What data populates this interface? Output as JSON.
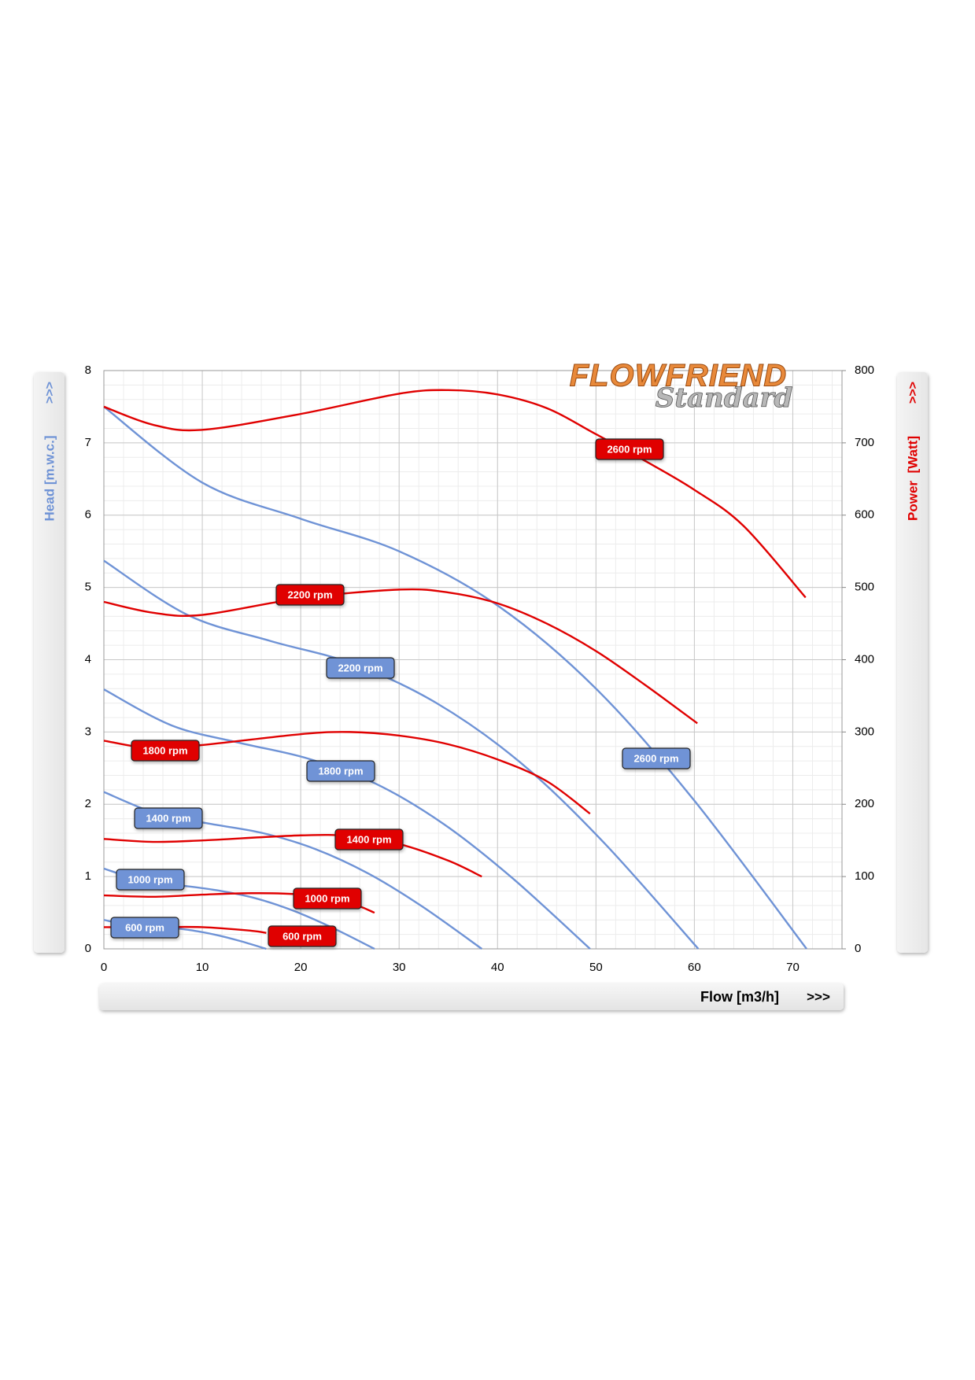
{
  "chart_data": {
    "type": "line",
    "logo": {
      "main": "FLOWFRIEND",
      "sub": "Standard"
    },
    "x_label": "Flow [m3/h]",
    "y_label": "Head [m.w.c.]",
    "y2_label": "Power  [Watt]",
    "x_arrow": ">>>",
    "y_arrow": ">>>",
    "y2_arrow": ">>>",
    "xlim": [
      0,
      75
    ],
    "xticks": [
      0,
      10,
      20,
      30,
      40,
      50,
      60,
      70
    ],
    "ylim": [
      0,
      8
    ],
    "yticks": [
      0,
      1,
      2,
      3,
      4,
      5,
      6,
      7,
      8
    ],
    "y2lim": [
      0,
      800
    ],
    "y2ticks": [
      0,
      100,
      200,
      300,
      400,
      500,
      600,
      700,
      800
    ],
    "grid": true,
    "minor_grid": true,
    "series": [
      {
        "name": "600 rpm",
        "color": "#6f93d6",
        "axis": "y",
        "x": [
          0,
          2.3,
          4.6,
          6.9,
          9.2,
          11.5,
          13.8,
          16.5
        ],
        "values": [
          0.4,
          0.34,
          0.32,
          0.29,
          0.25,
          0.19,
          0.11,
          0
        ]
      },
      {
        "name": "1000 rpm",
        "color": "#6f93d6",
        "axis": "y",
        "x": [
          0,
          3.8,
          7.7,
          11.5,
          15.4,
          19.2,
          23.1,
          27.5
        ],
        "values": [
          1.11,
          0.95,
          0.88,
          0.81,
          0.7,
          0.53,
          0.3,
          0
        ]
      },
      {
        "name": "1400 rpm",
        "color": "#6f93d6",
        "axis": "y",
        "x": [
          0,
          5.4,
          10.8,
          16.2,
          21.5,
          26.9,
          32.3,
          38.4
        ],
        "values": [
          2.17,
          1.87,
          1.73,
          1.6,
          1.38,
          1.04,
          0.59,
          0
        ]
      },
      {
        "name": "1800 rpm",
        "color": "#6f93d6",
        "axis": "y",
        "x": [
          0,
          6.9,
          13.8,
          20.8,
          27.7,
          34.6,
          41.5,
          49.4
        ],
        "values": [
          3.59,
          3.09,
          2.85,
          2.63,
          2.28,
          1.72,
          0.98,
          0
        ]
      },
      {
        "name": "2200 rpm",
        "color": "#6f93d6",
        "axis": "y",
        "x": [
          0,
          8.5,
          16.9,
          25.4,
          33.8,
          42.3,
          50.8,
          60.4
        ],
        "values": [
          5.37,
          4.62,
          4.26,
          3.94,
          3.4,
          2.58,
          1.47,
          0
        ]
      },
      {
        "name": "2600 rpm",
        "color": "#6f93d6",
        "axis": "y",
        "x": [
          0,
          10,
          20,
          30,
          40,
          50,
          60,
          71.4
        ],
        "values": [
          7.5,
          6.45,
          5.95,
          5.5,
          4.75,
          3.6,
          2.05,
          0
        ]
      },
      {
        "name": "600 rpm",
        "color": "#e00000",
        "axis": "y2",
        "x": [
          0,
          5,
          10,
          15,
          16.5
        ],
        "values": [
          30,
          30,
          30,
          25,
          22
        ]
      },
      {
        "name": "1000 rpm",
        "color": "#e00000",
        "axis": "y2",
        "x": [
          0,
          5,
          10,
          15,
          20,
          25,
          27.5
        ],
        "values": [
          74,
          72,
          75,
          77,
          75,
          63,
          50
        ]
      },
      {
        "name": "1400 rpm",
        "color": "#e00000",
        "axis": "y2",
        "x": [
          0,
          5,
          10,
          20,
          25,
          30,
          35,
          38.4
        ],
        "values": [
          152,
          148,
          150,
          157,
          156,
          145,
          122,
          100
        ]
      },
      {
        "name": "1800 rpm",
        "color": "#e00000",
        "axis": "y2",
        "x": [
          0,
          5,
          10,
          20,
          25,
          30,
          35,
          40,
          45,
          49.4
        ],
        "values": [
          288,
          277,
          282,
          297,
          300,
          295,
          283,
          262,
          232,
          187
        ]
      },
      {
        "name": "2200 rpm",
        "color": "#e00000",
        "axis": "y2",
        "x": [
          0,
          5,
          10,
          20,
          30,
          35,
          40,
          45,
          50,
          55,
          60.3
        ],
        "values": [
          480,
          465,
          462,
          485,
          497,
          493,
          478,
          450,
          412,
          365,
          312
        ]
      },
      {
        "name": "2600 rpm",
        "color": "#e00000",
        "axis": "y2",
        "x": [
          0,
          5,
          10,
          20,
          30,
          35,
          40,
          45,
          50,
          55,
          60,
          65,
          71.3
        ],
        "values": [
          750,
          725,
          718,
          740,
          768,
          773,
          767,
          748,
          712,
          675,
          635,
          585,
          486
        ]
      }
    ]
  }
}
